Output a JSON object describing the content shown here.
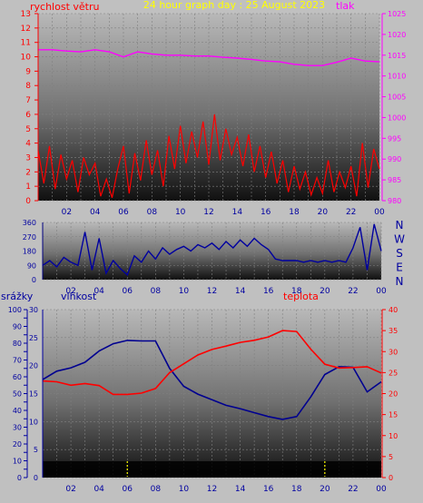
{
  "title": "24 hour graph day : 25 August 2023",
  "colors": {
    "wind": "#ff0000",
    "direction": "#0000a0",
    "pressure": "#ff00ff",
    "humidity": "#000090",
    "temperature": "#ff0000",
    "rain": "#2020c0",
    "title": "#ffff00",
    "grid": "#808080",
    "rain_marker": "#ffff00"
  },
  "time_ticks": [
    "02",
    "04",
    "06",
    "08",
    "10",
    "12",
    "14",
    "16",
    "18",
    "20",
    "22",
    "00"
  ],
  "chart_data": [
    {
      "type": "line",
      "title": "24 hour graph day : 25 August 2023",
      "left_label": "rychlost větru",
      "right_label": "tlak",
      "x_ticks": [
        "02",
        "04",
        "06",
        "08",
        "10",
        "12",
        "14",
        "16",
        "18",
        "20",
        "22",
        "00"
      ],
      "y_left_ticks": [
        "0",
        "1",
        "2",
        "3",
        "4",
        "5",
        "6",
        "7",
        "8",
        "9",
        "10",
        "11",
        "12",
        "13"
      ],
      "y_right_ticks": [
        "980",
        "985",
        "990",
        "995",
        "1000",
        "1005",
        "1010",
        "1015",
        "1020",
        "1025"
      ],
      "ylim_left": [
        0,
        13
      ],
      "ylim_right": [
        980,
        1025
      ],
      "grid": true,
      "series": [
        {
          "name": "rychlost větru",
          "axis": "left",
          "x": [
            0.0,
            0.4,
            0.8,
            1.2,
            1.6,
            2.0,
            2.4,
            2.8,
            3.2,
            3.6,
            4.0,
            4.4,
            4.8,
            5.2,
            5.6,
            6.0,
            6.4,
            6.8,
            7.2,
            7.6,
            8.0,
            8.4,
            8.8,
            9.2,
            9.6,
            10.0,
            10.4,
            10.8,
            11.2,
            11.6,
            12.0,
            12.4,
            12.8,
            13.2,
            13.6,
            14.0,
            14.4,
            14.8,
            15.2,
            15.6,
            16.0,
            16.4,
            16.8,
            17.2,
            17.6,
            18.0,
            18.4,
            18.8,
            19.2,
            19.6,
            20.0,
            20.4,
            20.8,
            21.2,
            21.6,
            22.0,
            22.4,
            22.8,
            23.2,
            23.6,
            24.0
          ],
          "values": [
            3.5,
            1.2,
            3.8,
            0.8,
            3.2,
            1.5,
            2.8,
            0.6,
            3.0,
            1.8,
            2.6,
            0.3,
            1.5,
            0.2,
            2.2,
            3.8,
            0.5,
            3.3,
            1.4,
            4.2,
            1.8,
            3.5,
            1.0,
            4.5,
            2.2,
            5.2,
            2.6,
            4.8,
            3.0,
            5.5,
            2.5,
            6.0,
            2.8,
            5.0,
            3.2,
            4.4,
            2.4,
            4.6,
            2.0,
            3.8,
            1.6,
            3.4,
            1.2,
            2.8,
            0.6,
            2.4,
            0.8,
            2.0,
            0.4,
            1.6,
            0.5,
            2.8,
            0.6,
            2.0,
            0.9,
            2.4,
            0.3,
            4.0,
            0.9,
            3.6,
            2.2
          ]
        },
        {
          "name": "tlak",
          "axis": "right",
          "x": [
            0,
            1,
            2,
            3,
            4,
            5,
            6,
            7,
            8,
            9,
            10,
            11,
            12,
            13,
            14,
            15,
            16,
            17,
            18,
            19,
            20,
            21,
            22,
            23,
            24
          ],
          "values": [
            1016.3,
            1016.3,
            1016.0,
            1015.8,
            1016.3,
            1015.8,
            1014.6,
            1015.8,
            1015.3,
            1015.0,
            1015.0,
            1014.8,
            1014.8,
            1014.5,
            1014.3,
            1014.0,
            1013.6,
            1013.4,
            1012.8,
            1012.5,
            1012.5,
            1013.3,
            1014.3,
            1013.6,
            1013.4
          ]
        }
      ]
    },
    {
      "type": "line",
      "y_ticks": [
        "0",
        "90",
        "180",
        "270",
        "360"
      ],
      "y_right_labels": [
        "N",
        "W",
        "S",
        "E",
        "N"
      ],
      "ylim": [
        0,
        360
      ],
      "x_ticks": [
        "02",
        "04",
        "06",
        "08",
        "10",
        "12",
        "14",
        "16",
        "18",
        "20",
        "22",
        "00"
      ],
      "series": [
        {
          "x": [
            0.0,
            0.5,
            1.0,
            1.5,
            2.0,
            2.5,
            3.0,
            3.5,
            4.0,
            4.5,
            5.0,
            5.5,
            6.0,
            6.5,
            7.0,
            7.5,
            8.0,
            8.5,
            9.0,
            9.5,
            10.0,
            10.5,
            11.0,
            11.5,
            12.0,
            12.5,
            13.0,
            13.5,
            14.0,
            14.5,
            15.0,
            15.5,
            16.0,
            16.5,
            17.0,
            17.5,
            18.0,
            18.5,
            19.0,
            19.5,
            20.0,
            20.5,
            21.0,
            21.5,
            22.0,
            22.5,
            23.0,
            23.5,
            24.0
          ],
          "values": [
            90,
            120,
            80,
            140,
            110,
            90,
            300,
            60,
            260,
            40,
            120,
            70,
            30,
            150,
            110,
            180,
            130,
            200,
            160,
            190,
            210,
            180,
            220,
            200,
            230,
            190,
            240,
            200,
            250,
            210,
            260,
            220,
            190,
            130,
            120,
            120,
            120,
            110,
            120,
            110,
            120,
            110,
            120,
            110,
            200,
            330,
            60,
            350,
            180
          ]
        }
      ]
    },
    {
      "type": "line",
      "left_label_1": "srážky",
      "left_label_2": "vlhkost",
      "right_label": "teplota",
      "y_rain_ticks": [
        "0",
        "5",
        "10",
        "15",
        "20",
        "25",
        "30",
        "35",
        "40",
        "45",
        "50",
        "55",
        "60",
        "65",
        "70",
        "75",
        "80",
        "85",
        "90",
        "95",
        "100"
      ],
      "y_humidity_ticks": [
        "0",
        "5",
        "10",
        "15",
        "20",
        "25",
        "30"
      ],
      "y_temperature_ticks": [
        "0",
        "5",
        "10",
        "15",
        "20",
        "25",
        "30",
        "35",
        "40"
      ],
      "ylim_rain": [
        0,
        100
      ],
      "ylim_humidity": [
        0,
        30
      ],
      "ylim_temperature": [
        0,
        40
      ],
      "x_ticks": [
        "02",
        "04",
        "06",
        "08",
        "10",
        "12",
        "14",
        "16",
        "18",
        "20",
        "22",
        "00"
      ],
      "series": [
        {
          "name": "vlhkost",
          "axis": "humidity",
          "x": [
            0,
            1,
            2,
            3,
            4,
            5,
            6,
            7,
            8,
            9,
            10,
            11,
            12,
            13,
            14,
            15,
            16,
            17,
            18,
            19,
            20,
            21,
            22,
            23,
            24
          ],
          "values": [
            17.5,
            19.0,
            19.6,
            20.6,
            22.6,
            23.9,
            24.5,
            24.4,
            24.4,
            19.5,
            16.3,
            14.9,
            13.9,
            12.9,
            12.3,
            11.6,
            10.9,
            10.4,
            10.9,
            14.4,
            18.4,
            19.8,
            19.7,
            15.3,
            17.1
          ]
        },
        {
          "name": "teplota",
          "axis": "temperature",
          "x": [
            0,
            1,
            2,
            3,
            4,
            5,
            6,
            7,
            8,
            9,
            10,
            11,
            12,
            13,
            14,
            15,
            16,
            17,
            18,
            19,
            20,
            21,
            22,
            23,
            24
          ],
          "values": [
            23.0,
            22.8,
            22.0,
            22.4,
            21.9,
            19.8,
            19.8,
            20.1,
            21.2,
            25.0,
            27.1,
            29.2,
            30.5,
            31.3,
            32.2,
            32.7,
            33.5,
            35.0,
            34.8,
            30.6,
            27.0,
            26.1,
            26.2,
            26.4,
            24.9
          ]
        },
        {
          "name": "srážky",
          "axis": "rain",
          "x": [
            6,
            20
          ],
          "values": [
            0.8,
            0.8
          ]
        }
      ]
    }
  ]
}
